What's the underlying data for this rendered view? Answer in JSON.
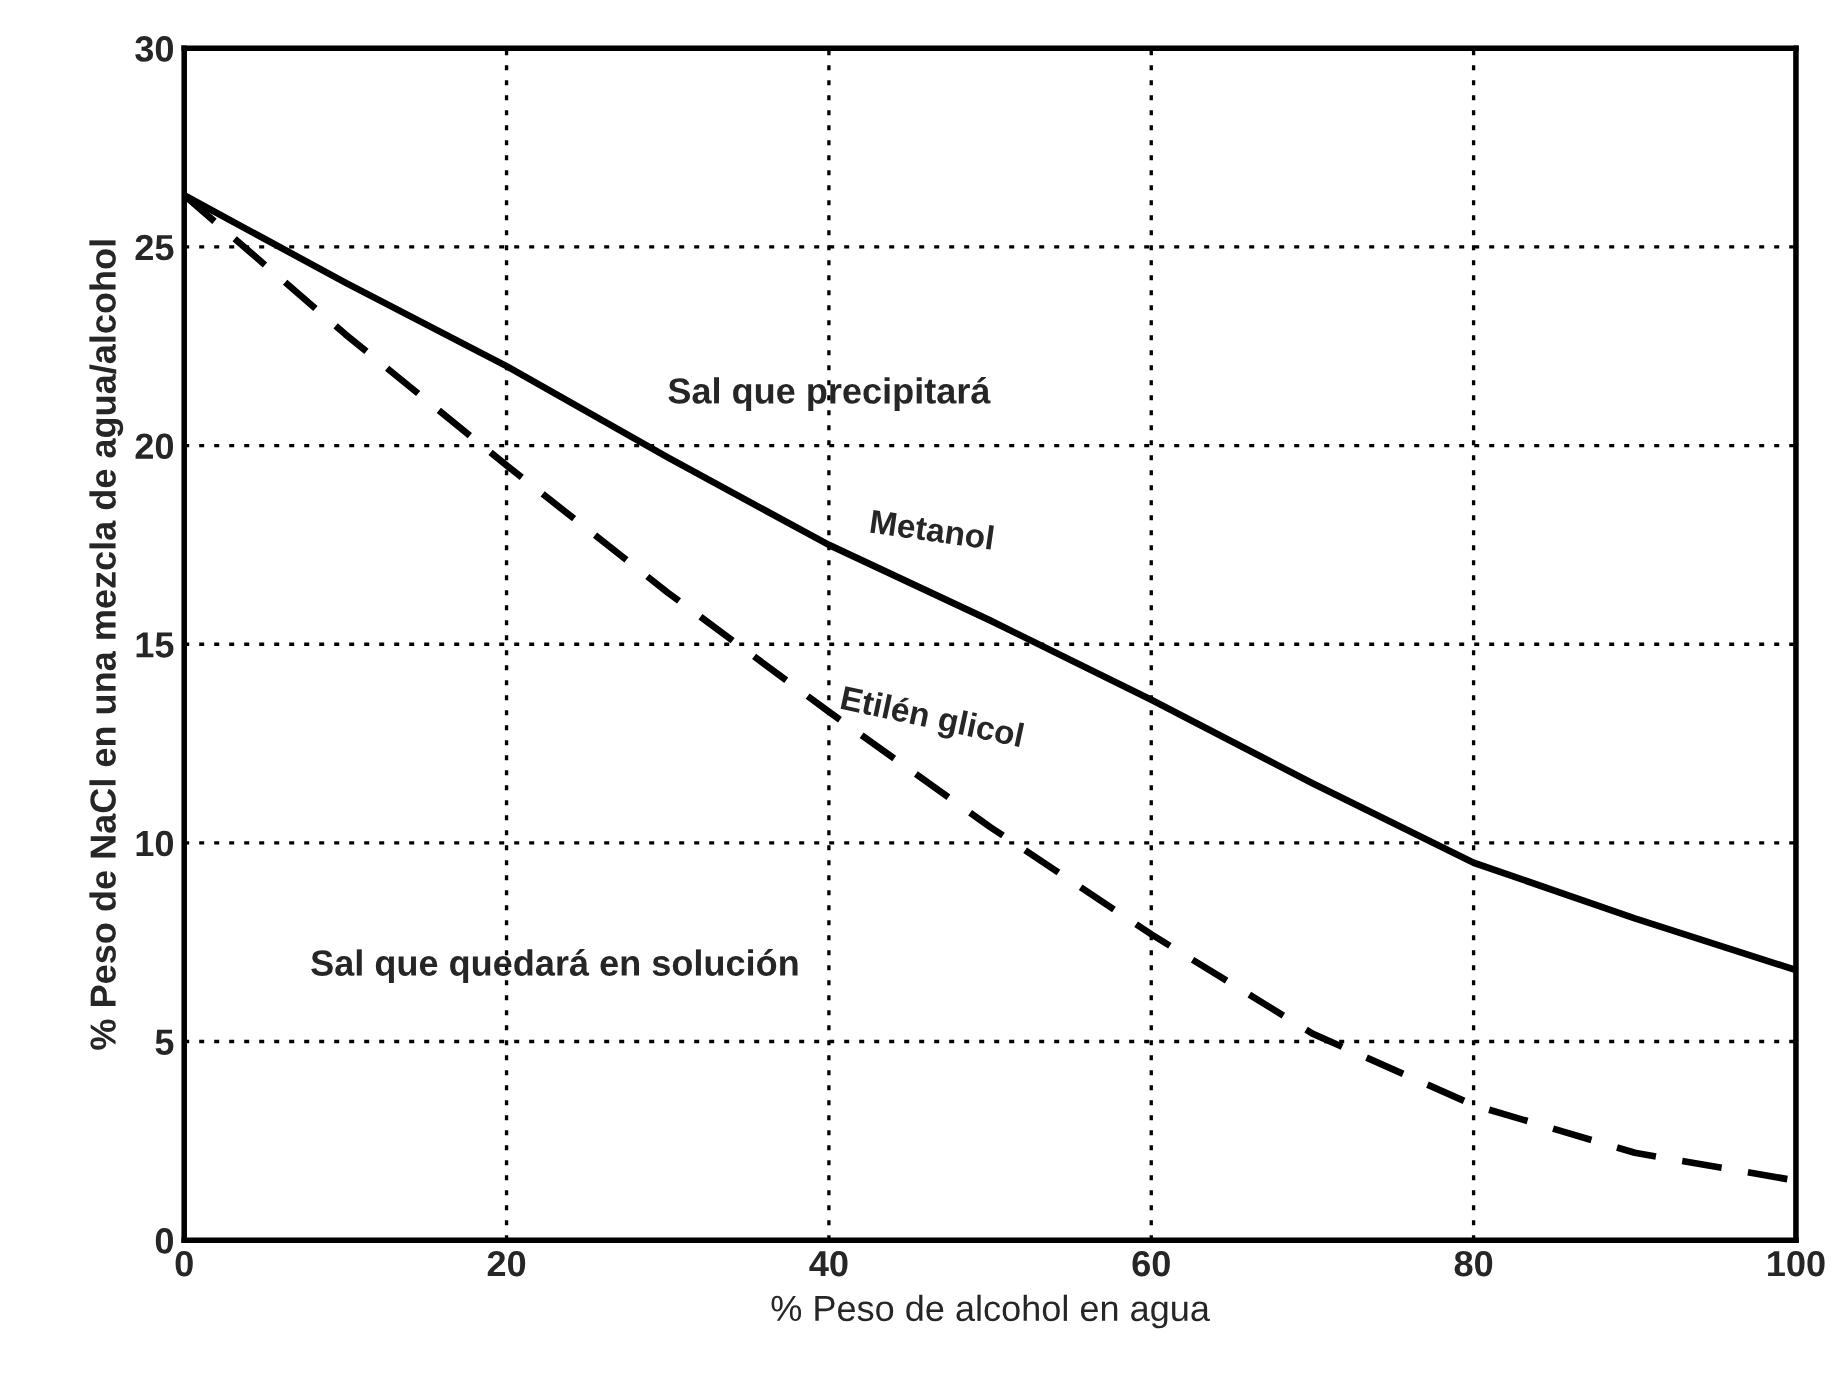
{
  "chart_data": {
    "type": "line",
    "xlabel": "% Peso de alcohol en agua",
    "ylabel": "% Peso de NaCl en una mezcla de agua/alcohol",
    "x": [
      0,
      10,
      20,
      30,
      40,
      50,
      60,
      70,
      80,
      90,
      100
    ],
    "series": [
      {
        "name": "Metanol",
        "color": "#000000",
        "line_style": "solid",
        "values": [
          26.3,
          24.1,
          22.0,
          19.7,
          17.5,
          15.6,
          13.6,
          11.5,
          9.5,
          8.1,
          6.8
        ]
      },
      {
        "name": "Etilén glicol",
        "color": "#000000",
        "line_style": "dashed",
        "values": [
          26.3,
          22.8,
          19.5,
          16.3,
          13.3,
          10.4,
          7.7,
          5.2,
          3.4,
          2.2,
          1.5
        ]
      }
    ],
    "xlim": [
      0,
      100
    ],
    "ylim": [
      0,
      30
    ],
    "xticks": [
      0,
      20,
      40,
      60,
      80,
      100
    ],
    "yticks": [
      0,
      5,
      10,
      15,
      20,
      25,
      30
    ],
    "grid": true,
    "legend": false,
    "annotations": [
      "Sal que precipitará",
      "Sal que quedará en solución"
    ]
  }
}
